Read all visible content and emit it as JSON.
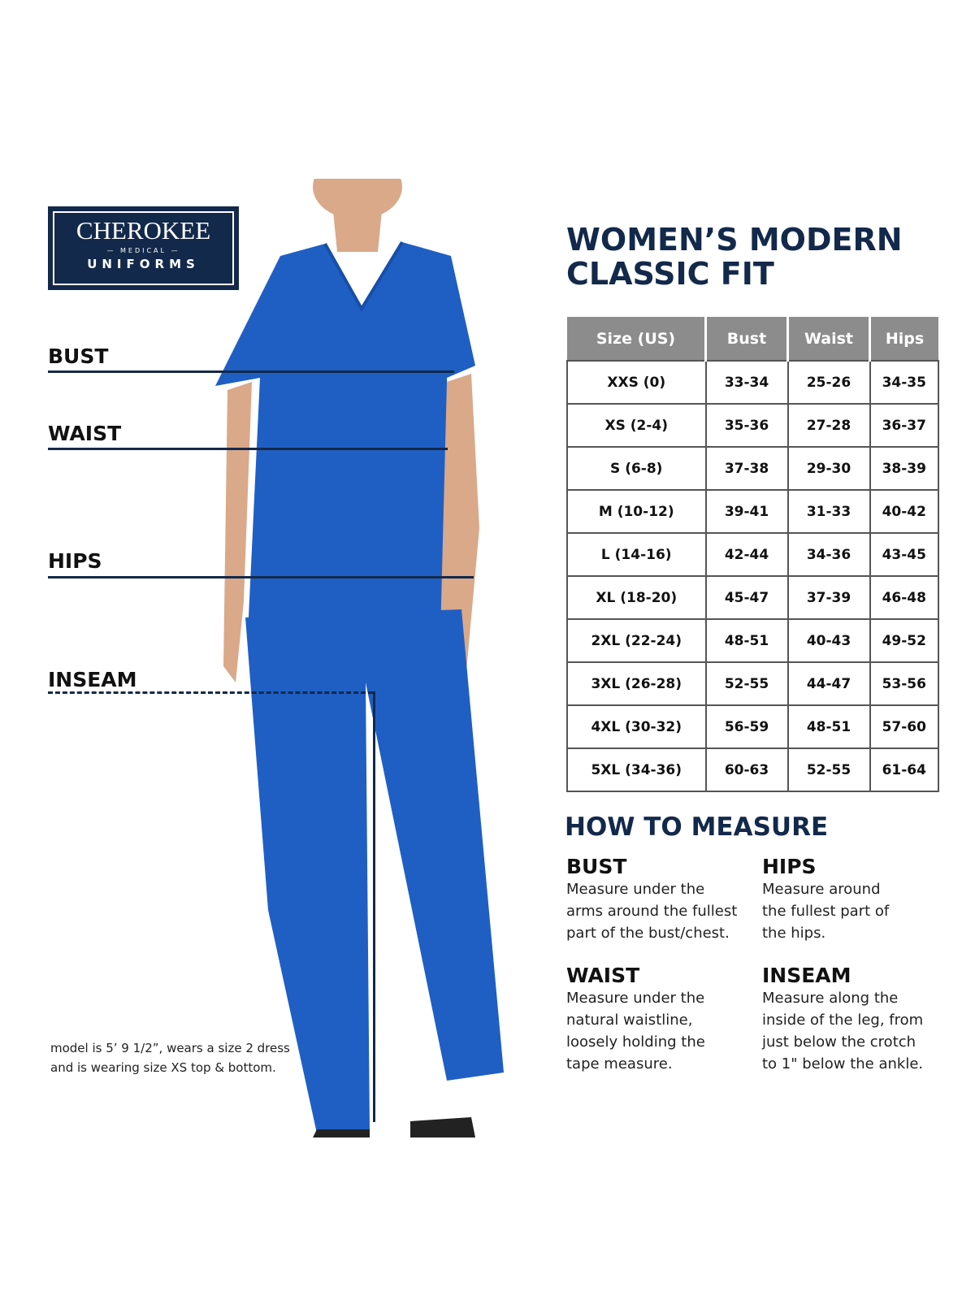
{
  "logo": {
    "brand": "CHEROKEE",
    "medical": "— MEDICAL —",
    "uniforms": "UNIFORMS",
    "color": "#13294b"
  },
  "measure_labels": {
    "bust": "BUST",
    "waist": "WAIST",
    "hips": "HIPS",
    "inseam": "INSEAM"
  },
  "title_line1": "WOMEN’S MODERN",
  "title_line2": "CLASSIC FIT",
  "size_table": {
    "headers": [
      "Size (US)",
      "Bust",
      "Waist",
      "Hips"
    ],
    "rows": [
      [
        "XXS (0)",
        "33-34",
        "25-26",
        "34-35"
      ],
      [
        "XS (2-4)",
        "35-36",
        "27-28",
        "36-37"
      ],
      [
        "S (6-8)",
        "37-38",
        "29-30",
        "38-39"
      ],
      [
        "M (10-12)",
        "39-41",
        "31-33",
        "40-42"
      ],
      [
        "L (14-16)",
        "42-44",
        "34-36",
        "43-45"
      ],
      [
        "XL (18-20)",
        "45-47",
        "37-39",
        "46-48"
      ],
      [
        "2XL (22-24)",
        "48-51",
        "40-43",
        "49-52"
      ],
      [
        "3XL (26-28)",
        "52-55",
        "44-47",
        "53-56"
      ],
      [
        "4XL (30-32)",
        "56-59",
        "48-51",
        "57-60"
      ],
      [
        "5XL (34-36)",
        "60-63",
        "52-55",
        "61-64"
      ]
    ]
  },
  "how_to_measure": {
    "heading": "HOW TO MEASURE",
    "items": [
      {
        "title": "BUST",
        "lines": [
          "Measure under the",
          "arms around the fullest",
          "part of the bust/chest."
        ]
      },
      {
        "title": "HIPS",
        "lines": [
          "Measure around",
          "the fullest part of",
          "the hips."
        ]
      },
      {
        "title": "WAIST",
        "lines": [
          "Measure under the",
          "natural waistline,",
          "loosely holding the",
          "tape measure."
        ]
      },
      {
        "title": "INSEAM",
        "lines": [
          "Measure along the",
          "inside of the leg, from",
          "just below the crotch",
          "to 1\" below the ankle."
        ]
      }
    ]
  },
  "model_note": {
    "line1": "model is 5’ 9 1/2”, wears a size 2 dress",
    "line2": "and is wearing size XS top & bottom."
  },
  "colors": {
    "navy": "#13294b",
    "scrub_blue": "#1f5fc4",
    "header_gray": "#8c8c8c"
  }
}
